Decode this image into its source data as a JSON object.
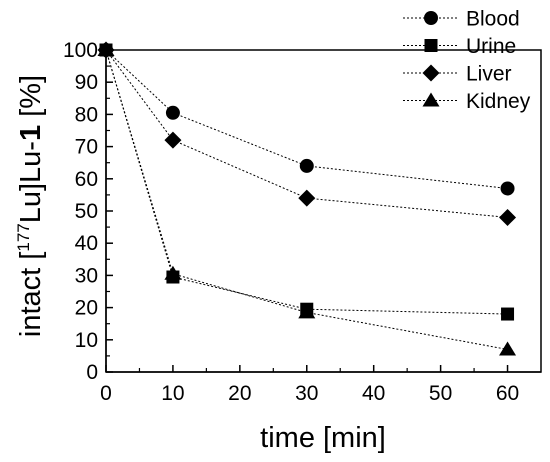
{
  "chart_data": {
    "type": "line",
    "x": [
      0,
      10,
      30,
      60
    ],
    "series": [
      {
        "name": "Blood",
        "marker": "circle",
        "values": [
          100,
          80.5,
          64,
          57
        ]
      },
      {
        "name": "Urine",
        "marker": "square",
        "values": [
          100,
          29.5,
          19.5,
          18
        ]
      },
      {
        "name": "Liver",
        "marker": "diamond",
        "values": [
          100,
          72,
          54,
          48
        ]
      },
      {
        "name": "Kidney",
        "marker": "triangle",
        "values": [
          100,
          30.5,
          18.5,
          7
        ]
      }
    ],
    "xlabel": "time [min]",
    "ylabel": {
      "prefix": "intact [",
      "sup": "177",
      "middle": "Lu]Lu-",
      "bold": "1",
      "suffix": " [%]"
    },
    "xlim": [
      0,
      65
    ],
    "ylim": [
      0,
      100
    ],
    "xticks": [
      0,
      10,
      20,
      30,
      40,
      50,
      60
    ],
    "xtick_labels": [
      "0",
      "10",
      "20",
      "30",
      "40",
      "50",
      "60"
    ],
    "yticks": [
      0,
      10,
      20,
      30,
      40,
      50,
      60,
      70,
      80,
      90,
      100
    ],
    "ytick_labels": [
      "0",
      "10",
      "20",
      "30",
      "40",
      "50",
      "60",
      "70",
      "80",
      "90",
      "100"
    ],
    "grid": false,
    "legend": "top-right",
    "line_style": "dotted",
    "color": "#000000"
  }
}
